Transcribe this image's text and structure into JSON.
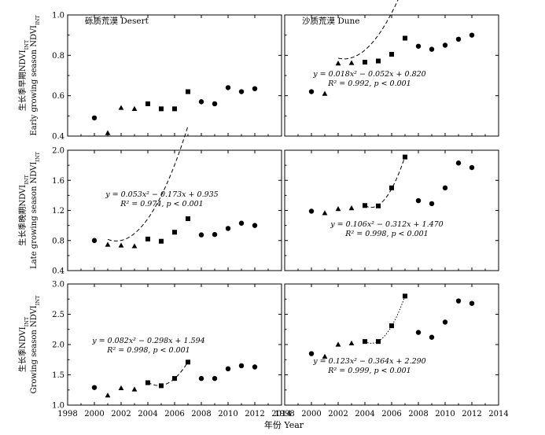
{
  "chart_data": {
    "type": "scatter",
    "x_axis": {
      "label": "年份  Year",
      "lim": [
        1998,
        2014
      ],
      "ticks": [
        1998,
        2000,
        2002,
        2004,
        2006,
        2008,
        2010,
        2012,
        2014
      ]
    },
    "columns": [
      {
        "title": "砾质荒漠  Desert"
      },
      {
        "title": "沙质荒漠  Dune"
      }
    ],
    "rows": [
      {
        "ylabel_line1": "生长季早期NDVI",
        "ylabel_line1_sub": "INT",
        "ylabel_line2": "Early growing season NDVI",
        "ylabel_line2_sub": "INT",
        "ylim": [
          0.4,
          1.0
        ],
        "yticks": [
          "0.4",
          "0.6",
          "0.8",
          "1.0"
        ]
      },
      {
        "ylabel_line1": "生长季晚期NDVI",
        "ylabel_line1_sub": "INT",
        "ylabel_line2": "Late growing season NDVI",
        "ylabel_line2_sub": "INT",
        "ylim": [
          0.4,
          2.0
        ],
        "yticks": [
          "0.4",
          "0.8",
          "1.2",
          "1.6",
          "2.0"
        ]
      },
      {
        "ylabel_line1": "生长季NDVI",
        "ylabel_line1_sub": "INT",
        "ylabel_line2": "Growing season NDVI",
        "ylabel_line2_sub": "INT",
        "ylim": [
          1.0,
          3.0
        ],
        "yticks": [
          "1.0",
          "1.5",
          "2.0",
          "2.5",
          "3.0"
        ]
      }
    ],
    "panels": [
      {
        "row": 0,
        "col": 0,
        "points": [
          {
            "x": 2000,
            "y": 0.49,
            "m": "circle"
          },
          {
            "x": 2001,
            "y": 0.415,
            "m": "triangle"
          },
          {
            "x": 2002,
            "y": 0.54,
            "m": "triangle"
          },
          {
            "x": 2003,
            "y": 0.535,
            "m": "triangle"
          },
          {
            "x": 2004,
            "y": 0.56,
            "m": "square"
          },
          {
            "x": 2005,
            "y": 0.535,
            "m": "square"
          },
          {
            "x": 2006,
            "y": 0.535,
            "m": "square"
          },
          {
            "x": 2007,
            "y": 0.62,
            "m": "square"
          },
          {
            "x": 2008,
            "y": 0.57,
            "m": "circle"
          },
          {
            "x": 2009,
            "y": 0.56,
            "m": "circle"
          },
          {
            "x": 2010,
            "y": 0.64,
            "m": "circle"
          },
          {
            "x": 2011,
            "y": 0.62,
            "m": "circle"
          },
          {
            "x": 2012,
            "y": 0.635,
            "m": "circle"
          }
        ]
      },
      {
        "row": 0,
        "col": 1,
        "points": [
          {
            "x": 2000,
            "y": 0.62,
            "m": "circle"
          },
          {
            "x": 2001,
            "y": 0.61,
            "m": "triangle"
          },
          {
            "x": 2002,
            "y": 0.76,
            "m": "triangle"
          },
          {
            "x": 2003,
            "y": 0.762,
            "m": "triangle"
          },
          {
            "x": 2004,
            "y": 0.766,
            "m": "square"
          },
          {
            "x": 2005,
            "y": 0.772,
            "m": "square"
          },
          {
            "x": 2006,
            "y": 0.805,
            "m": "square"
          },
          {
            "x": 2007,
            "y": 0.885,
            "m": "square"
          },
          {
            "x": 2008,
            "y": 0.845,
            "m": "circle"
          },
          {
            "x": 2009,
            "y": 0.83,
            "m": "circle"
          },
          {
            "x": 2010,
            "y": 0.85,
            "m": "circle"
          },
          {
            "x": 2011,
            "y": 0.88,
            "m": "circle"
          },
          {
            "x": 2012,
            "y": 0.9,
            "m": "circle"
          }
        ],
        "fit": {
          "type": "quadratic",
          "a": 0.018,
          "b": -0.052,
          "c": 0.82,
          "t0": 2001,
          "from": 2002,
          "to": 2007,
          "dash": "5,3"
        },
        "equation": [
          "y = 0.018x² − 0.052x + 0.820",
          "R² = 0.992, p < 0.001"
        ]
      },
      {
        "row": 1,
        "col": 0,
        "points": [
          {
            "x": 2000,
            "y": 0.8,
            "m": "circle"
          },
          {
            "x": 2001,
            "y": 0.745,
            "m": "triangle"
          },
          {
            "x": 2002,
            "y": 0.735,
            "m": "triangle"
          },
          {
            "x": 2003,
            "y": 0.725,
            "m": "triangle"
          },
          {
            "x": 2004,
            "y": 0.82,
            "m": "square"
          },
          {
            "x": 2005,
            "y": 0.79,
            "m": "square"
          },
          {
            "x": 2006,
            "y": 0.91,
            "m": "square"
          },
          {
            "x": 2007,
            "y": 1.09,
            "m": "square"
          },
          {
            "x": 2008,
            "y": 0.875,
            "m": "circle"
          },
          {
            "x": 2009,
            "y": 0.88,
            "m": "circle"
          },
          {
            "x": 2010,
            "y": 0.96,
            "m": "circle"
          },
          {
            "x": 2011,
            "y": 1.03,
            "m": "circle"
          },
          {
            "x": 2012,
            "y": 1.0,
            "m": "circle"
          }
        ],
        "fit": {
          "type": "quadratic",
          "a": 0.053,
          "b": -0.173,
          "c": 0.935,
          "t0": 2000,
          "from": 2001,
          "to": 2007,
          "dash": "5,3"
        },
        "equation": [
          "y = 0.053x² − 0.173x + 0.935",
          "R² = 0.974, p < 0.001"
        ]
      },
      {
        "row": 1,
        "col": 1,
        "points": [
          {
            "x": 2000,
            "y": 1.19,
            "m": "circle"
          },
          {
            "x": 2001,
            "y": 1.165,
            "m": "triangle"
          },
          {
            "x": 2002,
            "y": 1.22,
            "m": "triangle"
          },
          {
            "x": 2003,
            "y": 1.23,
            "m": "triangle"
          },
          {
            "x": 2004,
            "y": 1.265,
            "m": "square"
          },
          {
            "x": 2005,
            "y": 1.26,
            "m": "square"
          },
          {
            "x": 2006,
            "y": 1.5,
            "m": "square"
          },
          {
            "x": 2007,
            "y": 1.91,
            "m": "square"
          },
          {
            "x": 2008,
            "y": 1.33,
            "m": "circle"
          },
          {
            "x": 2009,
            "y": 1.29,
            "m": "circle"
          },
          {
            "x": 2010,
            "y": 1.5,
            "m": "circle"
          },
          {
            "x": 2011,
            "y": 1.83,
            "m": "circle"
          },
          {
            "x": 2012,
            "y": 1.77,
            "m": "circle"
          }
        ],
        "fit": {
          "type": "quadratic",
          "a": 0.106,
          "b": -0.312,
          "c": 1.47,
          "t0": 2003,
          "from": 2004,
          "to": 2007,
          "dash": "5,3"
        },
        "equation": [
          "y = 0.106x² − 0.312x + 1.470",
          "R² = 0.998, p < 0.001"
        ]
      },
      {
        "row": 2,
        "col": 0,
        "points": [
          {
            "x": 2000,
            "y": 1.29,
            "m": "circle"
          },
          {
            "x": 2001,
            "y": 1.16,
            "m": "triangle"
          },
          {
            "x": 2002,
            "y": 1.28,
            "m": "triangle"
          },
          {
            "x": 2003,
            "y": 1.26,
            "m": "triangle"
          },
          {
            "x": 2004,
            "y": 1.37,
            "m": "square"
          },
          {
            "x": 2005,
            "y": 1.32,
            "m": "square"
          },
          {
            "x": 2006,
            "y": 1.44,
            "m": "square"
          },
          {
            "x": 2007,
            "y": 1.71,
            "m": "square"
          },
          {
            "x": 2008,
            "y": 1.44,
            "m": "circle"
          },
          {
            "x": 2009,
            "y": 1.44,
            "m": "circle"
          },
          {
            "x": 2010,
            "y": 1.6,
            "m": "circle"
          },
          {
            "x": 2011,
            "y": 1.65,
            "m": "circle"
          },
          {
            "x": 2012,
            "y": 1.63,
            "m": "circle"
          }
        ],
        "fit": {
          "type": "quadratic",
          "a": 0.082,
          "b": -0.298,
          "c": 1.594,
          "t0": 2003,
          "from": 2004,
          "to": 2007,
          "dash": "5,3"
        },
        "equation": [
          "y = 0.082x² − 0.298x + 1.594",
          "R² = 0.998, p < 0.001"
        ]
      },
      {
        "row": 2,
        "col": 1,
        "points": [
          {
            "x": 2000,
            "y": 1.85,
            "m": "circle"
          },
          {
            "x": 2001,
            "y": 1.8,
            "m": "triangle"
          },
          {
            "x": 2002,
            "y": 2.0,
            "m": "triangle"
          },
          {
            "x": 2003,
            "y": 2.02,
            "m": "triangle"
          },
          {
            "x": 2004,
            "y": 2.05,
            "m": "square"
          },
          {
            "x": 2005,
            "y": 2.05,
            "m": "square"
          },
          {
            "x": 2006,
            "y": 2.31,
            "m": "square"
          },
          {
            "x": 2007,
            "y": 2.8,
            "m": "square"
          },
          {
            "x": 2008,
            "y": 2.2,
            "m": "circle"
          },
          {
            "x": 2009,
            "y": 2.12,
            "m": "circle"
          },
          {
            "x": 2010,
            "y": 2.37,
            "m": "circle"
          },
          {
            "x": 2011,
            "y": 2.72,
            "m": "circle"
          },
          {
            "x": 2012,
            "y": 2.68,
            "m": "circle"
          }
        ],
        "fit": {
          "type": "quadratic",
          "a": 0.123,
          "b": -0.364,
          "c": 2.29,
          "t0": 2003,
          "from": 2004,
          "to": 2007,
          "dash": "1.5,2"
        },
        "equation": [
          "y = 0.123x² − 0.364x + 2.290",
          "R² = 0.999, p < 0.001"
        ]
      }
    ]
  }
}
